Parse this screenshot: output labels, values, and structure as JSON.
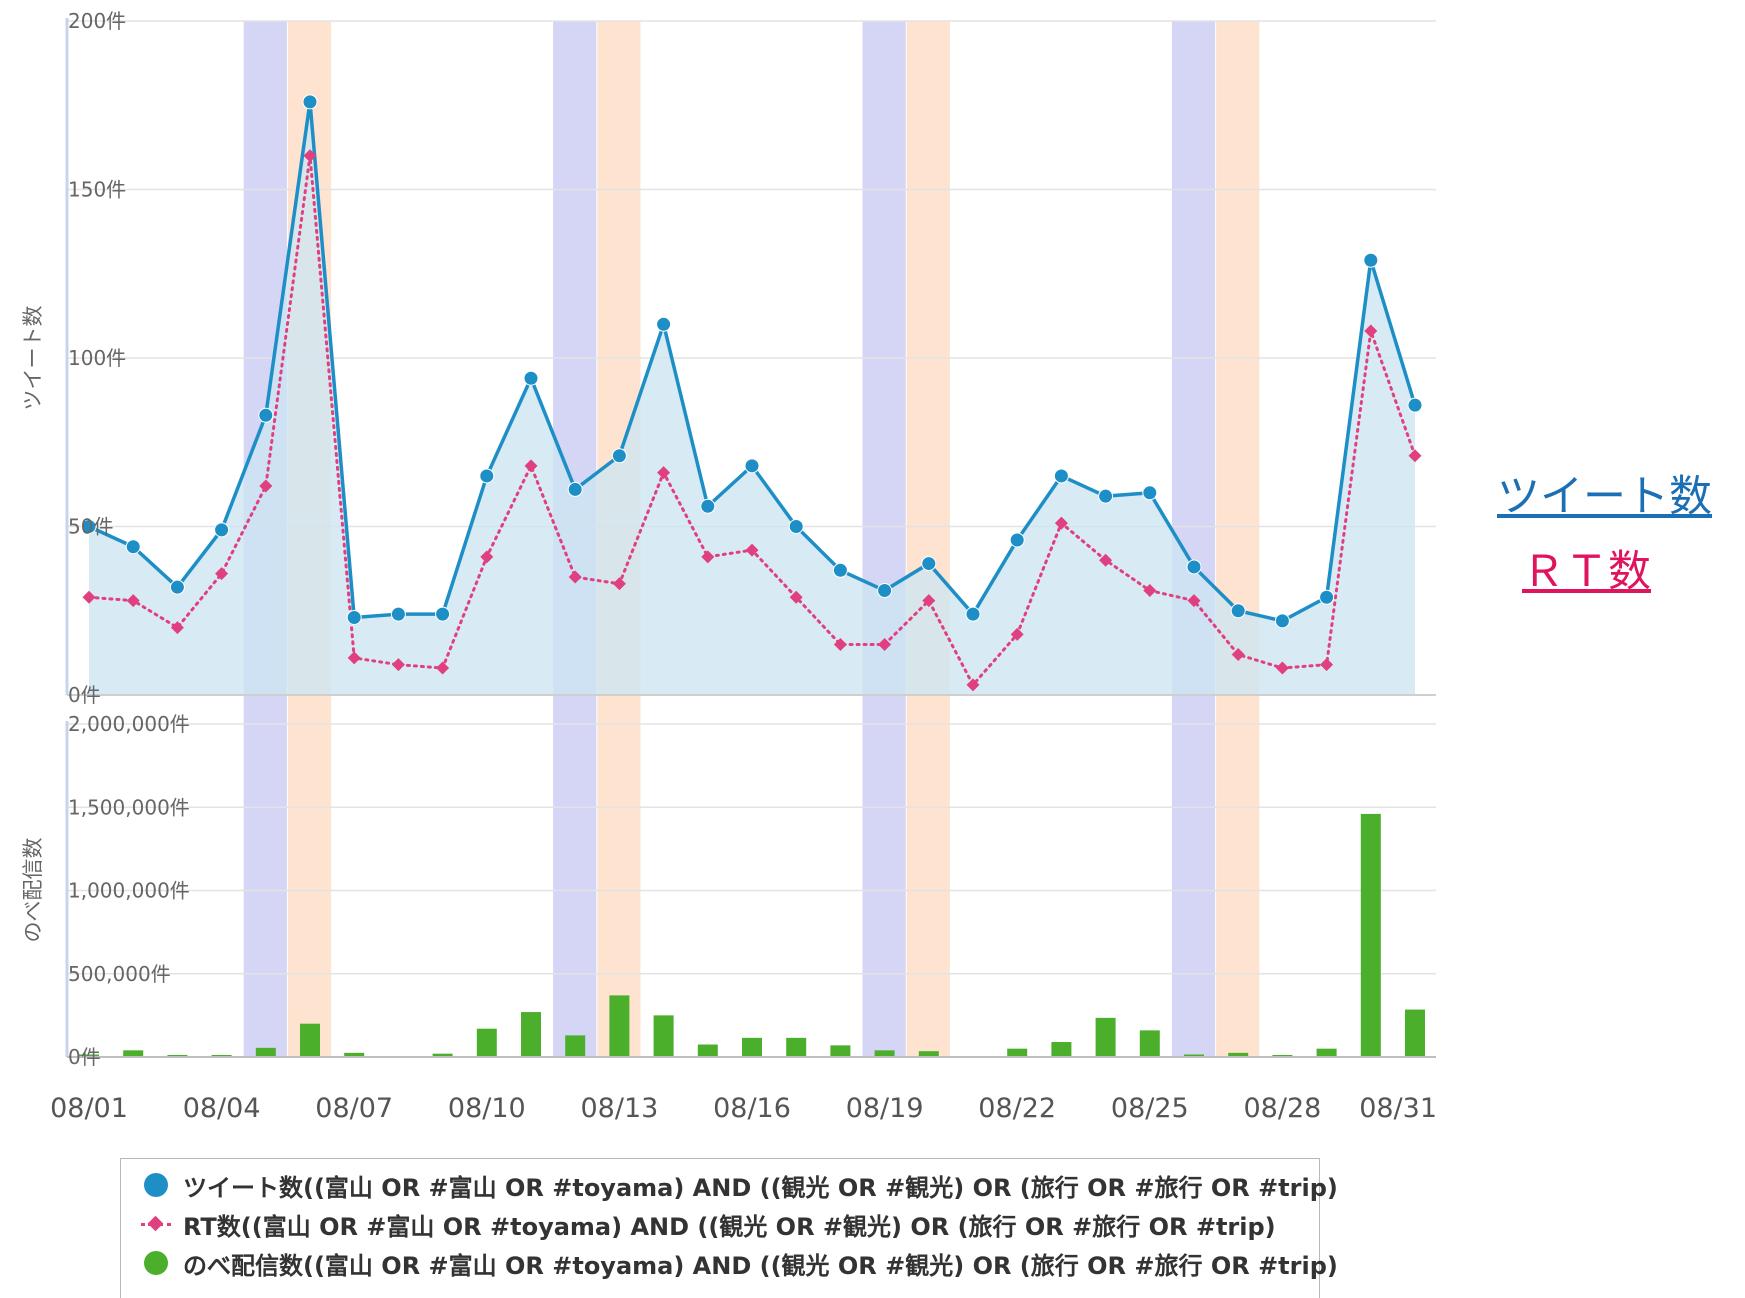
{
  "chart_data": {
    "type": "line+bar",
    "categories": [
      "08/01",
      "08/02",
      "08/03",
      "08/04",
      "08/05",
      "08/06",
      "08/07",
      "08/08",
      "08/09",
      "08/10",
      "08/11",
      "08/12",
      "08/13",
      "08/14",
      "08/15",
      "08/16",
      "08/17",
      "08/18",
      "08/19",
      "08/20",
      "08/21",
      "08/22",
      "08/23",
      "08/24",
      "08/25",
      "08/26",
      "08/27",
      "08/28",
      "08/29",
      "08/30",
      "08/31"
    ],
    "x_tick_labels": [
      "08/01",
      "08/04",
      "08/07",
      "08/10",
      "08/13",
      "08/16",
      "08/19",
      "08/22",
      "08/25",
      "08/28",
      "08/31"
    ],
    "weekend_bands": {
      "saturday": [
        "08/05",
        "08/12",
        "08/19",
        "08/26"
      ],
      "sunday": [
        "08/06",
        "08/13",
        "08/20",
        "08/27"
      ],
      "saturday_color": "#d5d5f5",
      "sunday_color": "#fde3d0"
    },
    "top_panel": {
      "ylabel": "ツイート数",
      "ylim": [
        0,
        200
      ],
      "ytick_labels": [
        "0件",
        "50件",
        "100件",
        "150件",
        "200件"
      ],
      "series": [
        {
          "name": "ツイート数((富山 OR #富山 OR #toyama) AND ((観光 OR #観光) OR (旅行 OR #旅行 OR #trip)",
          "type": "area-line",
          "color": "#1e8fc6",
          "fill": "#cde6f2",
          "values": [
            50,
            44,
            32,
            49,
            83,
            176,
            23,
            24,
            24,
            65,
            94,
            61,
            71,
            110,
            56,
            68,
            50,
            37,
            31,
            39,
            24,
            46,
            65,
            59,
            60,
            38,
            25,
            22,
            29,
            129,
            86
          ]
        },
        {
          "name": "RT数((富山 OR #富山 OR #toyama) AND ((観光 OR #観光) OR (旅行 OR #旅行 OR #trip)",
          "type": "dotted-line",
          "color": "#e04080",
          "values": [
            29,
            28,
            20,
            36,
            62,
            160,
            11,
            9,
            8,
            41,
            68,
            35,
            33,
            66,
            41,
            43,
            29,
            15,
            15,
            28,
            3,
            18,
            51,
            40,
            31,
            28,
            12,
            8,
            9,
            108,
            71
          ]
        }
      ]
    },
    "bottom_panel": {
      "ylabel": "のべ配信数",
      "ylim": [
        0,
        2000000
      ],
      "ytick_labels": [
        "0件",
        "500,000件",
        "1,000,000件",
        "1,500,000件",
        "2,000,000件"
      ],
      "series": [
        {
          "name": "のべ配信数((富山 OR #富山 OR #toyama) AND ((観光 OR #観光) OR (旅行 OR #旅行 OR #trip)",
          "type": "bar",
          "color": "#4caf2c",
          "values": [
            15000,
            40000,
            10000,
            12000,
            55000,
            200000,
            25000,
            0,
            20000,
            170000,
            270000,
            130000,
            370000,
            250000,
            75000,
            115000,
            115000,
            70000,
            40000,
            35000,
            0,
            50000,
            90000,
            235000,
            160000,
            15000,
            25000,
            10000,
            50000,
            1460000,
            285000
          ]
        }
      ]
    },
    "legend": {
      "items": [
        "ツイート数((富山 OR #富山 OR #toyama) AND ((観光 OR #観光) OR (旅行 OR #旅行 OR #trip)",
        "RT数((富山 OR #富山 OR #toyama) AND ((観光 OR #観光) OR (旅行 OR #旅行 OR #trip)",
        "のべ配信数((富山 OR #富山 OR #toyama) AND ((観光 OR #観光) OR (旅行 OR #旅行 OR #trip)"
      ],
      "placement": "bottom"
    }
  },
  "side_links": {
    "tweet": "ツイート数",
    "rt": "ＲＴ数",
    "tweet_color": "#1a6fb5",
    "rt_color": "#e0145e"
  }
}
